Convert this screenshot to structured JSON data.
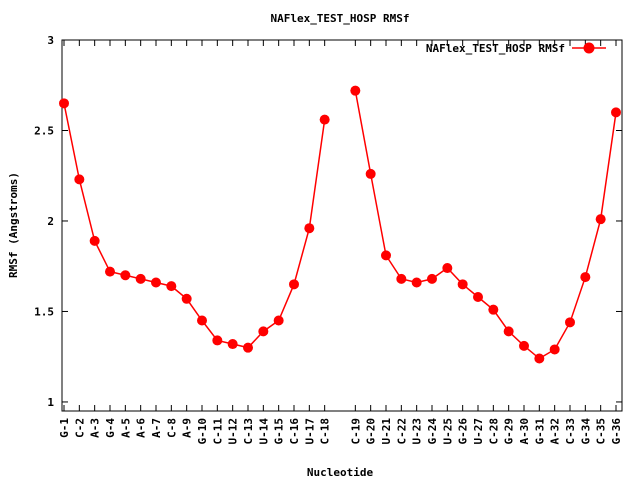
{
  "chart_data": {
    "type": "line",
    "title": "NAFlex_TEST_HOSP RMSf",
    "xlabel": "Nucleotide",
    "ylabel": "RMSf (Angstroms)",
    "ylim": [
      0.95,
      3.0
    ],
    "yticks": [
      "1",
      "1.5",
      "2",
      "2.5",
      "3"
    ],
    "ytick_values": [
      1,
      1.5,
      2,
      2.5,
      3
    ],
    "grid": false,
    "legend_position": "top-right",
    "color": "#ff0000",
    "series": [
      {
        "name": "NAFlex_TEST_HOSP RMSf",
        "segments": [
          {
            "x": [
              1,
              2,
              3,
              4,
              5,
              6,
              7,
              8,
              9,
              10,
              11,
              12,
              13,
              14,
              15,
              16,
              17,
              18
            ],
            "values": [
              2.65,
              2.23,
              1.89,
              1.72,
              1.7,
              1.68,
              1.66,
              1.64,
              1.57,
              1.45,
              1.34,
              1.32,
              1.3,
              1.39,
              1.45,
              1.65,
              1.96,
              2.56
            ]
          },
          {
            "x": [
              20,
              21,
              22,
              23,
              24,
              25,
              26,
              27,
              28,
              29,
              30,
              31,
              32,
              33,
              34,
              35,
              36,
              37
            ],
            "values": [
              2.72,
              2.26,
              1.81,
              1.68,
              1.66,
              1.68,
              1.74,
              1.65,
              1.58,
              1.51,
              1.39,
              1.31,
              1.24,
              1.29,
              1.44,
              1.69,
              2.01,
              2.6
            ]
          }
        ]
      }
    ],
    "ticks": [
      {
        "x": 1,
        "label": "G-1"
      },
      {
        "x": 2,
        "label": "C-2"
      },
      {
        "x": 3,
        "label": "A-3"
      },
      {
        "x": 4,
        "label": "G-4"
      },
      {
        "x": 5,
        "label": "A-5"
      },
      {
        "x": 6,
        "label": "A-6"
      },
      {
        "x": 7,
        "label": "A-7"
      },
      {
        "x": 8,
        "label": "C-8"
      },
      {
        "x": 9,
        "label": "A-9"
      },
      {
        "x": 10,
        "label": "G-10"
      },
      {
        "x": 11,
        "label": "C-11"
      },
      {
        "x": 12,
        "label": "U-12"
      },
      {
        "x": 13,
        "label": "C-13"
      },
      {
        "x": 14,
        "label": "U-14"
      },
      {
        "x": 15,
        "label": "G-15"
      },
      {
        "x": 16,
        "label": "C-16"
      },
      {
        "x": 17,
        "label": "U-17"
      },
      {
        "x": 18,
        "label": "C-18"
      },
      {
        "x": 20,
        "label": "C-19"
      },
      {
        "x": 21,
        "label": "G-20"
      },
      {
        "x": 22,
        "label": "U-21"
      },
      {
        "x": 23,
        "label": "C-22"
      },
      {
        "x": 24,
        "label": "U-23"
      },
      {
        "x": 25,
        "label": "G-24"
      },
      {
        "x": 26,
        "label": "U-25"
      },
      {
        "x": 27,
        "label": "G-26"
      },
      {
        "x": 28,
        "label": "U-27"
      },
      {
        "x": 29,
        "label": "C-28"
      },
      {
        "x": 30,
        "label": "G-29"
      },
      {
        "x": 31,
        "label": "A-30"
      },
      {
        "x": 32,
        "label": "G-31"
      },
      {
        "x": 33,
        "label": "A-32"
      },
      {
        "x": 34,
        "label": "C-33"
      },
      {
        "x": 35,
        "label": "G-34"
      },
      {
        "x": 36,
        "label": "C-35"
      },
      {
        "x": 37,
        "label": "G-36"
      }
    ],
    "xlim": [
      1,
      37
    ]
  }
}
